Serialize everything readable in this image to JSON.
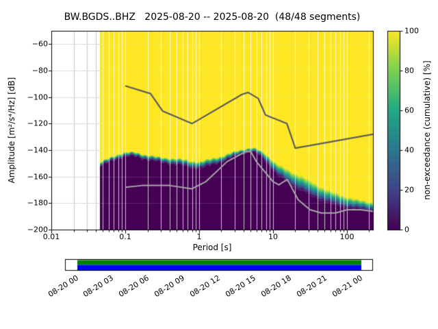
{
  "title": "BW.BGDS..BHZ   2025-08-20 -- 2025-08-20  (48/48 segments)",
  "axes": {
    "xlabel": "Period [s]",
    "ylabel": "Amplitude [m²/s⁴/Hz] [dB]",
    "x_tick_values": [
      0.01,
      0.1,
      1,
      10,
      100
    ],
    "x_tick_labels": [
      "0.01",
      "0.1",
      "1",
      "10",
      "100"
    ],
    "y_tick_values": [
      -200,
      -180,
      -160,
      -140,
      -120,
      -100,
      -80,
      -60
    ],
    "y_tick_labels": [
      "−200",
      "−180",
      "−160",
      "−140",
      "−120",
      "−100",
      "−80",
      "−60"
    ]
  },
  "colorbar": {
    "label": "non-exceedance (cumulative) [%]",
    "tick_values": [
      0,
      20,
      40,
      60,
      80,
      100
    ],
    "tick_labels": [
      "0",
      "20",
      "40",
      "60",
      "80",
      "100"
    ],
    "viridis_stops": [
      "#440154",
      "#414487",
      "#2a788e",
      "#22a884",
      "#7ad151",
      "#fde725"
    ]
  },
  "timeline": {
    "tick_labels": [
      "08-20 00",
      "08-20 03",
      "08-20 06",
      "08-20 09",
      "08-20 12",
      "08-20 15",
      "08-20 18",
      "08-20 21",
      "08-21 00"
    ],
    "coverage_top_color": "#008000",
    "coverage_bottom_color": "#0000ff"
  },
  "chart_data": {
    "type": "heatmap",
    "title": "BW.BGDS..BHZ   2025-08-20 -- 2025-08-20  (48/48 segments)",
    "station_id": "BW.BGDS..BHZ",
    "date_start": "2025-08-20",
    "date_end": "2025-08-20",
    "segments_used": 48,
    "segments_total": 48,
    "xlabel": "Period [s]",
    "ylabel": "Amplitude [m²/s⁴/Hz] [dB]",
    "colorbar_label": "non-exceedance (cumulative) [%]",
    "x_scale": "log",
    "xlim": [
      0.01,
      225
    ],
    "ylim": [
      -200,
      -50
    ],
    "data_period_start": 0.045,
    "colormap": "viridis",
    "grid": true,
    "cumulative_boundary": {
      "periods": [
        0.045,
        0.06,
        0.08,
        0.1,
        0.13,
        0.17,
        0.22,
        0.3,
        0.4,
        0.55,
        0.75,
        1.0,
        1.4,
        2.0,
        2.8,
        4.0,
        5.0,
        6.0,
        7.5,
        9.0,
        11,
        14,
        18,
        24,
        32,
        45,
        65,
        95,
        140,
        225
      ],
      "dark_top_db": [
        -152,
        -149,
        -146,
        -144.5,
        -144.5,
        -146,
        -147.5,
        -149,
        -150,
        -151,
        -153,
        -153.5,
        -151.5,
        -148.5,
        -145.5,
        -142,
        -141,
        -142.5,
        -147,
        -152,
        -158,
        -162.5,
        -166.5,
        -170.5,
        -174.5,
        -178,
        -181,
        -183,
        -184.5,
        -185.5
      ],
      "yellow_bottom_db": [
        -149,
        -146,
        -143,
        -141.5,
        -141.5,
        -143,
        -144,
        -145.5,
        -146,
        -146.5,
        -148,
        -148.5,
        -146.5,
        -144.5,
        -141.5,
        -139,
        -138,
        -139,
        -142,
        -145.5,
        -150,
        -153.5,
        -156.5,
        -159.5,
        -163.5,
        -168,
        -172,
        -175,
        -177.5,
        -179.5
      ]
    },
    "noise_models": {
      "nhnm": {
        "color": "#5a5a5a",
        "periods": [
          0.1,
          0.22,
          0.32,
          0.8,
          3.8,
          4.6,
          6.3,
          7.9,
          15.4,
          20.0,
          354.8
        ],
        "db": [
          -91.5,
          -97.4,
          -110.5,
          -120.0,
          -98.0,
          -96.5,
          -101.0,
          -113.5,
          -120.0,
          -138.5,
          -126.0
        ]
      },
      "nlnm": {
        "color": "#a8a8a8",
        "periods": [
          0.1,
          0.17,
          0.4,
          0.8,
          1.24,
          2.4,
          4.3,
          5.0,
          6.0,
          10.0,
          12.0,
          15.6,
          21.9,
          31.6,
          45.0,
          70.0,
          101.0,
          154.0,
          328.0
        ],
        "db": [
          -168.0,
          -166.7,
          -166.7,
          -169.2,
          -163.7,
          -148.6,
          -141.1,
          -141.1,
          -149.0,
          -163.8,
          -166.2,
          -162.1,
          -177.5,
          -185.0,
          -187.5,
          -187.5,
          -185.0,
          -185.0,
          -187.5
        ]
      }
    }
  }
}
